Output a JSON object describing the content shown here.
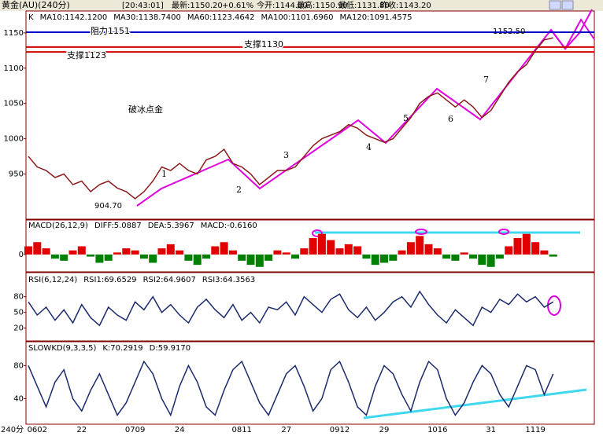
{
  "header": {
    "symbol": "黄金(AU)(240分)",
    "time": "[20:43:01]",
    "fields": [
      "最新:1150.20",
      "+0.61%",
      "今开:1144.00",
      "最高:1150.90",
      "最低:1131.80",
      "昨收:1143.20"
    ]
  },
  "x_axis_corner": "240分",
  "chart_data": [
    {
      "type": "line",
      "legend_labels": [
        "K",
        "MA10:1142.1200",
        "MA30:1138.7400",
        "MA60:1123.4642",
        "MA100:1101.6960",
        "MA120:1091.4575"
      ],
      "categories": [
        null,
        "0602",
        null,
        null,
        null,
        null,
        "22",
        null,
        null,
        null,
        null,
        null,
        "0709",
        null,
        null,
        null,
        null,
        "24",
        null,
        null,
        null,
        null,
        null,
        null,
        "0811",
        null,
        null,
        null,
        null,
        "27",
        null,
        null,
        null,
        null,
        null,
        "0912",
        null,
        null,
        null,
        null,
        "29",
        null,
        null,
        null,
        null,
        null,
        "1016",
        null,
        null,
        null,
        null,
        null,
        "31",
        null,
        null,
        null,
        null,
        "1119",
        null,
        null
      ],
      "values": [
        975,
        960,
        955,
        945,
        950,
        935,
        940,
        925,
        935,
        940,
        930,
        925,
        915,
        925,
        940,
        960,
        955,
        965,
        955,
        950,
        970,
        975,
        985,
        965,
        960,
        950,
        935,
        945,
        955,
        955,
        960,
        975,
        990,
        1000,
        1005,
        1010,
        1020,
        1015,
        1005,
        1000,
        995,
        1000,
        1015,
        1030,
        1050,
        1060,
        1065,
        1055,
        1045,
        1055,
        1045,
        1030,
        1040,
        1060,
        1080,
        1095,
        1105,
        1125,
        1140,
        1143
      ],
      "color": "#8b1a1a",
      "ylim": [
        886,
        1181
      ],
      "yticks": [
        950,
        1000,
        1050,
        1100,
        1150
      ],
      "reference_lines": [
        {
          "label": "阻力1151",
          "value": 1151,
          "color": "#0000c8"
        },
        {
          "label": "支撑1130",
          "value": 1130,
          "color": "#d00000"
        },
        {
          "label": "支撑1123",
          "value": 1123,
          "color": "#d00000"
        }
      ],
      "annotations": {
        "high": "1152.50",
        "low": "904.70",
        "headline": "破冰点金",
        "waves": [
          "1",
          "2",
          "3",
          "4",
          "5",
          "6",
          "7"
        ]
      }
    },
    {
      "type": "bar",
      "title": [
        "MACD(26,12,9)",
        "DIFF:5.0887",
        "DEA:5.3967",
        "MACD:-0.6160"
      ],
      "values": [
        4,
        6,
        3,
        -2,
        -3,
        2,
        4,
        -1,
        -4,
        -3,
        1,
        3,
        2,
        -2,
        -4,
        3,
        5,
        2,
        -3,
        -5,
        -2,
        4,
        6,
        2,
        -3,
        -5,
        -6,
        -3,
        2,
        1,
        -2,
        3,
        8,
        10,
        7,
        3,
        5,
        4,
        -2,
        -5,
        -4,
        -3,
        2,
        6,
        9,
        5,
        3,
        -2,
        -3,
        1,
        -2,
        -5,
        -6,
        -2,
        4,
        8,
        10,
        6,
        2,
        -1
      ],
      "colors": {
        "positive": "#e00000",
        "negative": "#008000"
      },
      "ylim": [
        -8,
        16
      ],
      "yticks": [
        0
      ]
    },
    {
      "type": "line",
      "title": [
        "RSI(6,12,24)",
        "RSI1:69.6529",
        "RSI2:64.9607",
        "RSI3:64.3563"
      ],
      "values": [
        70,
        45,
        60,
        35,
        55,
        30,
        65,
        40,
        25,
        60,
        45,
        35,
        70,
        55,
        80,
        50,
        65,
        45,
        30,
        60,
        75,
        55,
        40,
        65,
        35,
        50,
        30,
        60,
        55,
        70,
        45,
        80,
        65,
        50,
        75,
        85,
        55,
        40,
        60,
        35,
        50,
        70,
        80,
        60,
        90,
        65,
        45,
        30,
        55,
        40,
        25,
        60,
        50,
        75,
        65,
        85,
        70,
        80,
        60,
        70
      ],
      "color": "#1a2a6c",
      "ylim": [
        0,
        120
      ],
      "yticks": [
        20,
        50,
        80
      ]
    },
    {
      "type": "line",
      "title": [
        "SLOWKD(9,3,3,5)",
        "K:70.2919",
        "D:59.9170"
      ],
      "values": [
        80,
        55,
        30,
        60,
        75,
        40,
        25,
        50,
        70,
        45,
        20,
        35,
        60,
        85,
        70,
        40,
        20,
        55,
        80,
        60,
        30,
        20,
        50,
        75,
        85,
        60,
        35,
        20,
        45,
        70,
        80,
        55,
        25,
        40,
        75,
        85,
        60,
        30,
        20,
        55,
        80,
        70,
        45,
        25,
        60,
        85,
        75,
        40,
        20,
        35,
        60,
        80,
        70,
        45,
        30,
        55,
        80,
        75,
        45,
        70
      ],
      "color": "#1a2a6c",
      "ylim": [
        10,
        106
      ],
      "yticks": [
        40,
        80
      ]
    }
  ]
}
